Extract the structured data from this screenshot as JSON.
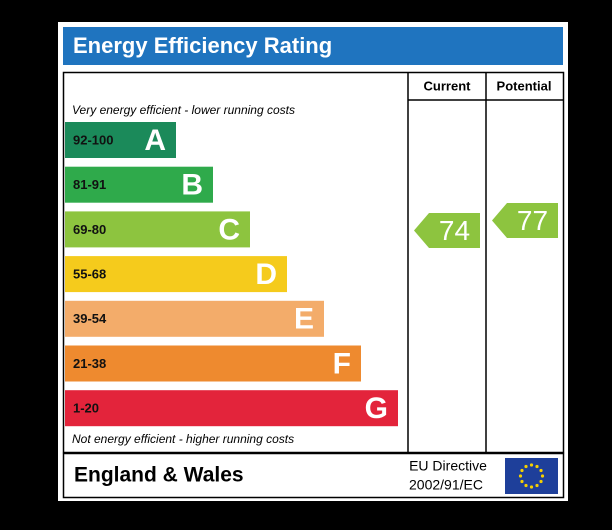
{
  "header": {
    "title": "Energy Efficiency Rating"
  },
  "columns": {
    "current": "Current",
    "potential": "Potential"
  },
  "top_note": "Very energy efficient - lower running costs",
  "bottom_note": "Not energy efficient - higher running costs",
  "bands": [
    {
      "range": "92-100",
      "letter": "A",
      "color": "#1b8a5a"
    },
    {
      "range": "81-91",
      "letter": "B",
      "color": "#2faa4b"
    },
    {
      "range": "69-80",
      "letter": "C",
      "color": "#8dc43f"
    },
    {
      "range": "55-68",
      "letter": "D",
      "color": "#f5cb1c"
    },
    {
      "range": "39-54",
      "letter": "E",
      "color": "#f3ac6a"
    },
    {
      "range": "21-38",
      "letter": "F",
      "color": "#ee8a2f"
    },
    {
      "range": "1-20",
      "letter": "G",
      "color": "#e3243b"
    }
  ],
  "current": {
    "value": 74,
    "color": "#8dc43f"
  },
  "potential": {
    "value": 77,
    "color": "#8dc43f"
  },
  "footer": {
    "region": "England & Wales",
    "directive_line1": "EU Directive",
    "directive_line2": "2002/91/EC"
  }
}
